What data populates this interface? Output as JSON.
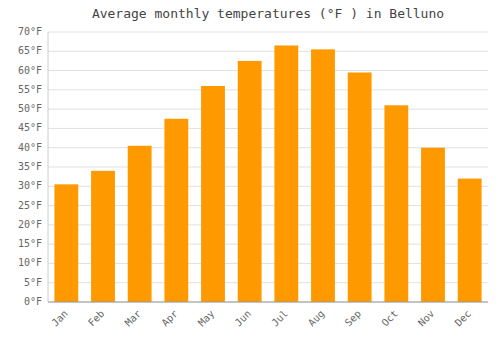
{
  "chart_data": {
    "type": "bar",
    "title": "Average monthly temperatures (°F ) in Belluno",
    "categories": [
      "Jan",
      "Feb",
      "Mar",
      "Apr",
      "May",
      "Jun",
      "Jul",
      "Aug",
      "Sep",
      "Oct",
      "Nov",
      "Dec"
    ],
    "values": [
      30.5,
      34.0,
      40.5,
      47.5,
      56.0,
      62.5,
      66.5,
      65.5,
      59.5,
      51.0,
      40.0,
      32.0
    ],
    "color": "#FF9900",
    "ylim": [
      0,
      70
    ],
    "yticks": [
      {
        "value": 0,
        "label": "0°F"
      },
      {
        "value": 5,
        "label": "5°F"
      },
      {
        "value": 10,
        "label": "10°F"
      },
      {
        "value": 15,
        "label": "15°F"
      },
      {
        "value": 20,
        "label": "20°F"
      },
      {
        "value": 25,
        "label": "25°F"
      },
      {
        "value": 30,
        "label": "30°F"
      },
      {
        "value": 35,
        "label": "35°F"
      },
      {
        "value": 40,
        "label": "40°F"
      },
      {
        "value": 45,
        "label": "45°F"
      },
      {
        "value": 50,
        "label": "50°F"
      },
      {
        "value": 55,
        "label": "55°F"
      },
      {
        "value": 60,
        "label": "60°F"
      },
      {
        "value": 65,
        "label": "65°F"
      },
      {
        "value": 70,
        "label": "70°F"
      }
    ],
    "grid": true
  }
}
